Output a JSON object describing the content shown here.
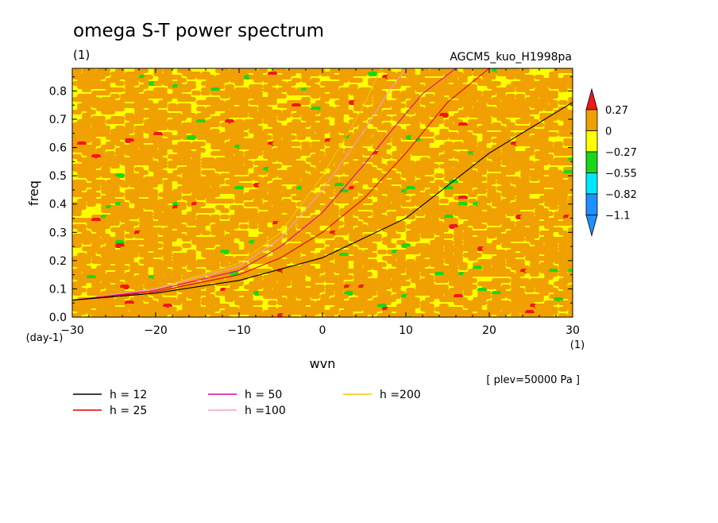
{
  "header": {
    "title": "omega S-T power spectrum",
    "unit": "(1)",
    "run_name": "AGCM5_kuo_H1998pa"
  },
  "footer": {
    "level_note": "[ plev=50000 Pa ]"
  },
  "colors": {
    "bg": "#ffffff",
    "lvl_red": "#f01818",
    "lvl_orange": "#f0a000",
    "lvl_yellow": "#ffff00",
    "lvl_green": "#18d818",
    "lvl_cyan": "#00e8ff",
    "lvl_blue": "#1e90ff"
  },
  "chart_data": {
    "type": "heatmap",
    "title": "omega S-T power spectrum",
    "xlabel": "wvn",
    "ylabel": "freq",
    "x_unit": "(1)",
    "y_unit": "(day-1)",
    "xlim": [
      -30,
      30
    ],
    "ylim": [
      0,
      0.88
    ],
    "x_ticks": [
      -30,
      -20,
      -10,
      0,
      10,
      20,
      30
    ],
    "y_ticks": [
      0.0,
      0.1,
      0.2,
      0.3,
      0.4,
      0.5,
      0.6,
      0.7,
      0.8
    ],
    "y_tick_labels": [
      "0.0",
      "0.1",
      "0.2",
      "0.3",
      "0.4",
      "0.5",
      "0.6",
      "0.7",
      "0.8"
    ],
    "x_tick_labels": [
      "−30",
      "−20",
      "−10",
      "0",
      "10",
      "20",
      "30"
    ],
    "field_note": "noisy field dominated by values between -0.27 and 0.27 (orange/yellow), scattered green and red patches",
    "colorbar": {
      "labels": [
        "0.27",
        "0",
        "−0.27",
        "−0.55",
        "−0.82",
        "−1.1"
      ],
      "bins": [
        {
          "range": "> 0.27",
          "color": "#f01818"
        },
        {
          "range": "0 to 0.27",
          "color": "#f0a000"
        },
        {
          "range": "-0.27 to 0",
          "color": "#ffff00"
        },
        {
          "range": "-0.55 to -0.27",
          "color": "#18d818"
        },
        {
          "range": "-0.82 to -0.55",
          "color": "#00e8ff"
        },
        {
          "range": "-1.1 to -0.82",
          "color": "#1e90ff"
        },
        {
          "range": "< -1.1",
          "color": "#1e90ff"
        }
      ]
    },
    "dispersion_curves": [
      {
        "name": "h = 12",
        "h": 12,
        "color": "#000000"
      },
      {
        "name": "h = 25",
        "h": 25,
        "color": "#e00000"
      },
      {
        "name": "h = 50",
        "h": 50,
        "color": "#e000a0"
      },
      {
        "name": "h =100",
        "h": 100,
        "color": "#f0a0d0"
      },
      {
        "name": "h =200",
        "h": 200,
        "color": "#f0c800"
      }
    ],
    "curve_points": {
      "h12": [
        [
          -30,
          0.06
        ],
        [
          -20,
          0.085
        ],
        [
          -10,
          0.13
        ],
        [
          0,
          0.21
        ],
        [
          10,
          0.35
        ],
        [
          20,
          0.58
        ],
        [
          30,
          0.76
        ]
      ],
      "h25": [
        [
          -30,
          0.06
        ],
        [
          -20,
          0.09
        ],
        [
          -10,
          0.15
        ],
        [
          -5,
          0.21
        ],
        [
          0,
          0.3
        ],
        [
          5,
          0.42
        ],
        [
          10,
          0.58
        ],
        [
          15,
          0.76
        ],
        [
          20,
          0.88
        ]
      ],
      "h50": [
        [
          -30,
          0.06
        ],
        [
          -20,
          0.095
        ],
        [
          -10,
          0.165
        ],
        [
          -5,
          0.25
        ],
        [
          0,
          0.37
        ],
        [
          5,
          0.54
        ],
        [
          8,
          0.65
        ],
        [
          12,
          0.79
        ],
        [
          16,
          0.88
        ]
      ],
      "h100": [
        [
          -30,
          0.06
        ],
        [
          -20,
          0.1
        ],
        [
          -10,
          0.18
        ],
        [
          -5,
          0.28
        ],
        [
          0,
          0.45
        ],
        [
          5,
          0.66
        ],
        [
          8,
          0.8
        ],
        [
          10,
          0.88
        ]
      ],
      "h200": [
        [
          -30,
          0.06
        ],
        [
          -20,
          0.1
        ],
        [
          -10,
          0.19
        ],
        [
          -5,
          0.3
        ],
        [
          0,
          0.5
        ],
        [
          3,
          0.65
        ],
        [
          5,
          0.75
        ],
        [
          7,
          0.88
        ]
      ]
    }
  }
}
